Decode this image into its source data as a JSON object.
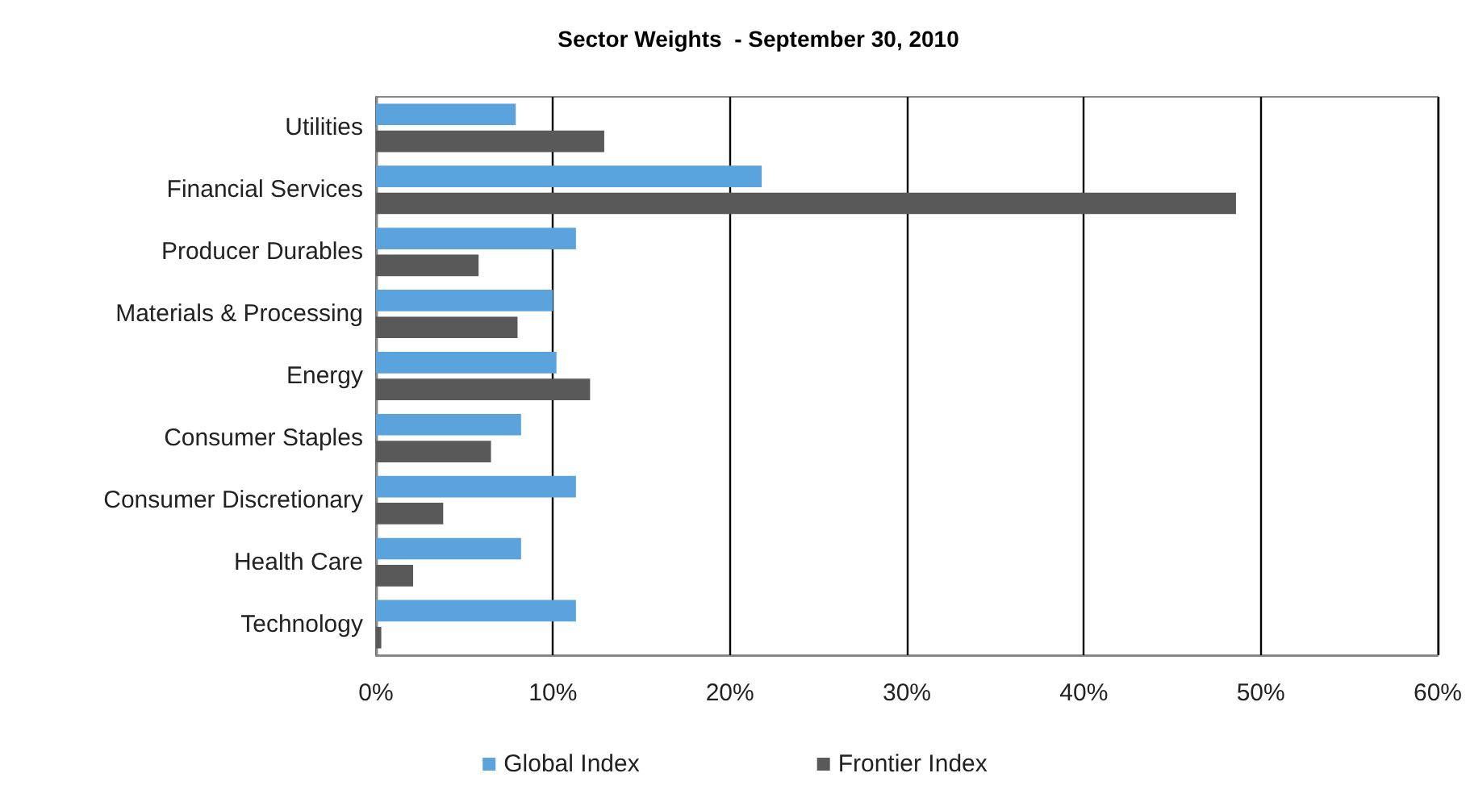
{
  "chart_data": {
    "type": "bar",
    "orientation": "horizontal",
    "title": "Sector Weights  - September 30, 2010",
    "categories": [
      "Utilities",
      "Financial Services",
      "Producer Durables",
      "Materials & Processing",
      "Energy",
      "Consumer Staples",
      "Consumer Discretionary",
      "Health Care",
      "Technology"
    ],
    "series": [
      {
        "name": "Global Index",
        "color": "#5ba3dc",
        "values": [
          7.9,
          21.8,
          11.3,
          10.0,
          10.2,
          8.2,
          11.3,
          8.2,
          11.3
        ]
      },
      {
        "name": "Frontier Index",
        "color": "#595959",
        "values": [
          12.9,
          48.6,
          5.8,
          8.0,
          12.1,
          6.5,
          3.8,
          2.1,
          0.3
        ]
      }
    ],
    "xlim": [
      0,
      60
    ],
    "xticks": [
      {
        "value": 0,
        "label": "0%"
      },
      {
        "value": 10,
        "label": "10%"
      },
      {
        "value": 20,
        "label": "20%"
      },
      {
        "value": 30,
        "label": "30%"
      },
      {
        "value": 40,
        "label": "40%"
      },
      {
        "value": 50,
        "label": "50%"
      },
      {
        "value": 60,
        "label": "60%"
      }
    ],
    "grid": "x",
    "legend": "bottom"
  }
}
